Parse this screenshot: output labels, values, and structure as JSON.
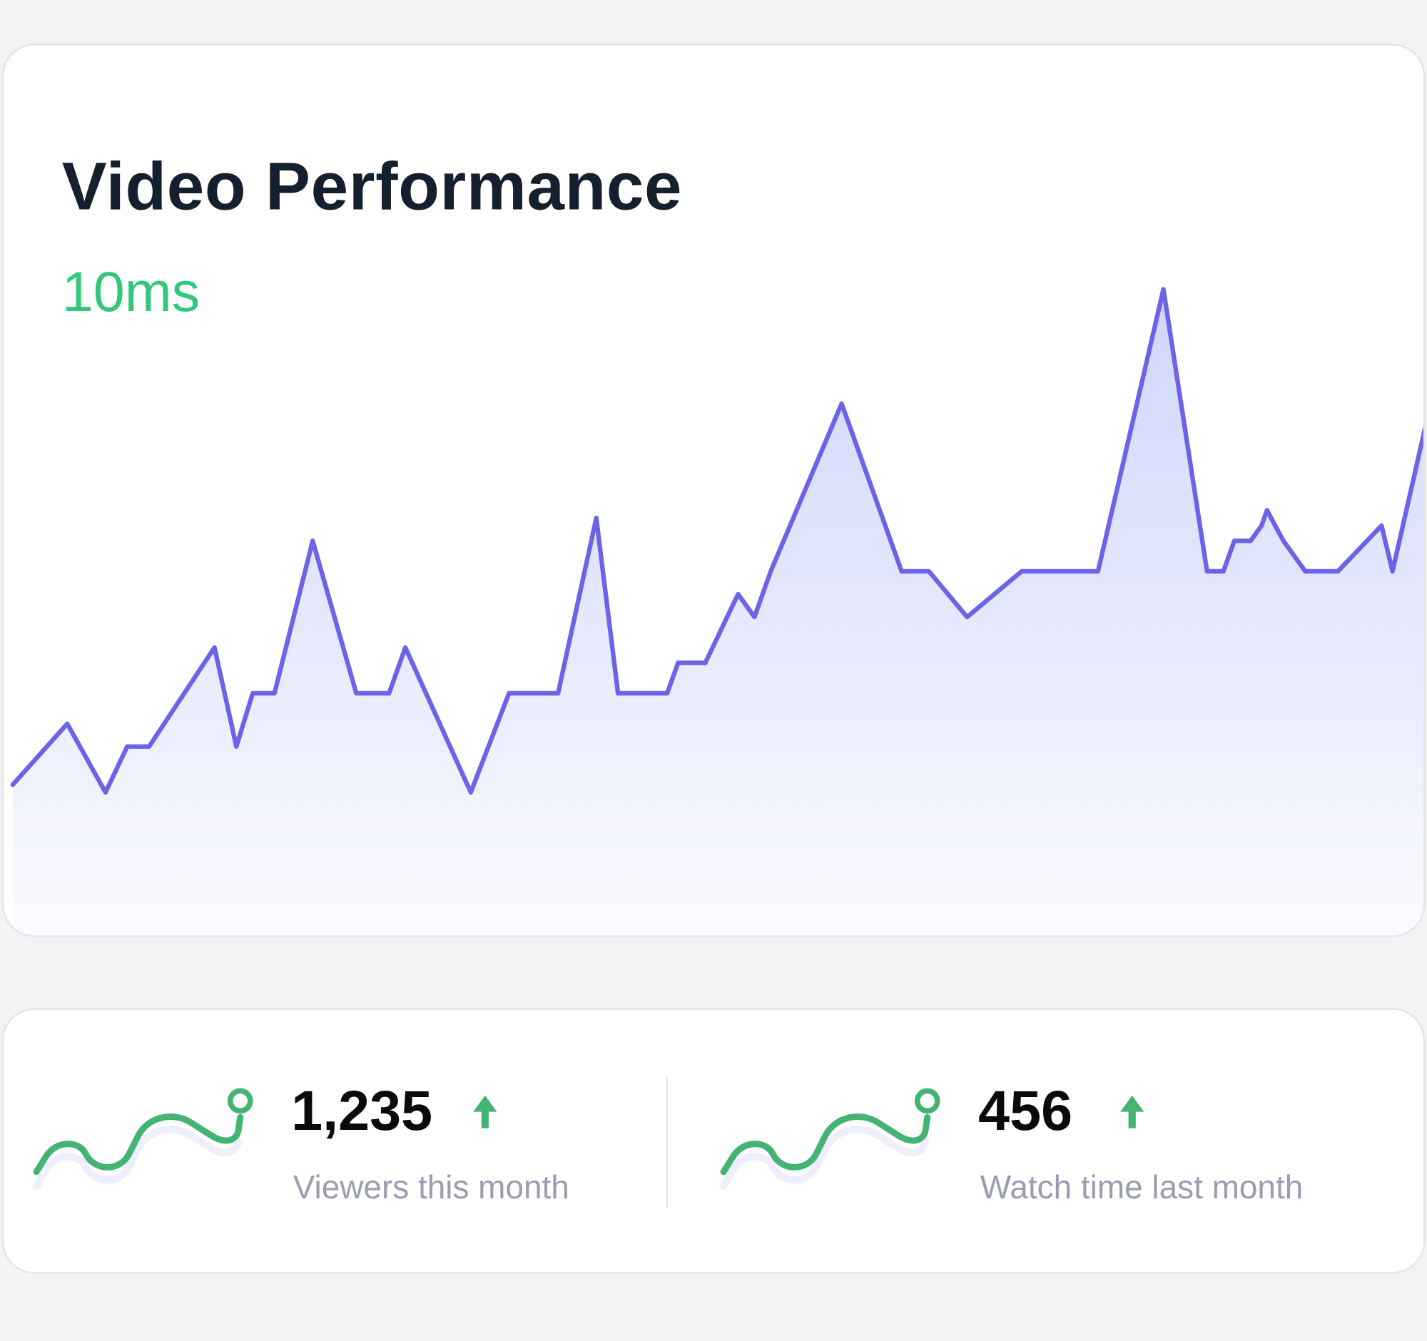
{
  "card": {
    "title": "Video Performance",
    "metric": "10ms"
  },
  "colors": {
    "line": "#6c63e8",
    "fill_top": "#cfd6fa",
    "metric": "#34c77b",
    "sparkline": "#45b373",
    "arrow": "#45b373"
  },
  "chart_data": {
    "type": "area",
    "title": "",
    "xlabel": "",
    "ylabel": "",
    "grid": false,
    "axes_visible": false,
    "x": [
      1,
      11,
      18,
      22,
      26,
      38,
      42,
      45,
      49,
      56,
      64,
      70,
      73,
      85,
      92,
      101,
      108,
      112,
      121,
      123,
      128,
      132,
      134,
      137,
      140,
      153,
      164,
      169,
      176,
      186,
      200,
      212,
      220,
      223,
      225,
      228,
      230,
      231,
      234,
      238,
      244,
      252,
      254,
      261
    ],
    "y": [
      20,
      28,
      19,
      25,
      25,
      38,
      25,
      32,
      32,
      52,
      32,
      32,
      38,
      19,
      32,
      32,
      55,
      32,
      32,
      36,
      36,
      42,
      45,
      42,
      48,
      70,
      48,
      48,
      42,
      48,
      48,
      85,
      48,
      48,
      52,
      52,
      54,
      56,
      52,
      48,
      48,
      54,
      48,
      70
    ],
    "ylim": [
      0,
      117
    ]
  },
  "stats": [
    {
      "value": "1,235",
      "label": "Viewers this month",
      "trend": "up",
      "icon": "sparkline-icon"
    },
    {
      "value": "456",
      "label": "Watch time last month",
      "trend": "up",
      "icon": "sparkline-icon"
    }
  ]
}
